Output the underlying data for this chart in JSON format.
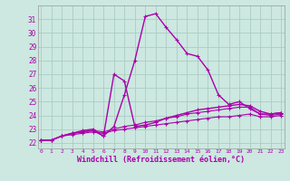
{
  "xlabel": "Windchill (Refroidissement éolien,°C)",
  "bg_color": "#cce8e0",
  "grid_color": "#aaccc4",
  "line_color": "#aa00aa",
  "x_ticks": [
    0,
    1,
    2,
    3,
    4,
    5,
    6,
    7,
    8,
    9,
    10,
    11,
    12,
    13,
    14,
    15,
    16,
    17,
    18,
    19,
    20,
    21,
    22,
    23
  ],
  "y_ticks": [
    22,
    23,
    24,
    25,
    26,
    27,
    28,
    29,
    30,
    31
  ],
  "ylim": [
    21.6,
    32.0
  ],
  "xlim": [
    -0.3,
    23.3
  ],
  "series": [
    [
      22.2,
      22.2,
      22.5,
      22.7,
      22.8,
      22.9,
      22.5,
      23.2,
      25.5,
      28.0,
      31.2,
      31.4,
      30.4,
      29.5,
      28.5,
      28.3,
      27.3,
      25.5,
      24.8,
      25.0,
      24.5,
      24.1,
      24.1,
      24.2
    ],
    [
      22.2,
      22.2,
      22.5,
      22.7,
      22.9,
      23.0,
      22.5,
      27.0,
      26.5,
      23.2,
      23.3,
      23.5,
      23.8,
      24.0,
      24.2,
      24.4,
      24.5,
      24.6,
      24.7,
      24.8,
      24.7,
      24.3,
      24.1,
      24.2
    ],
    [
      22.2,
      22.2,
      22.5,
      22.7,
      22.8,
      22.9,
      22.8,
      23.0,
      23.2,
      23.3,
      23.5,
      23.6,
      23.8,
      23.9,
      24.1,
      24.2,
      24.3,
      24.4,
      24.5,
      24.6,
      24.6,
      24.1,
      24.0,
      24.1
    ],
    [
      22.2,
      22.2,
      22.5,
      22.6,
      22.7,
      22.8,
      22.7,
      22.9,
      23.0,
      23.1,
      23.2,
      23.3,
      23.4,
      23.5,
      23.6,
      23.7,
      23.8,
      23.9,
      23.9,
      24.0,
      24.1,
      23.9,
      23.9,
      24.0
    ]
  ]
}
